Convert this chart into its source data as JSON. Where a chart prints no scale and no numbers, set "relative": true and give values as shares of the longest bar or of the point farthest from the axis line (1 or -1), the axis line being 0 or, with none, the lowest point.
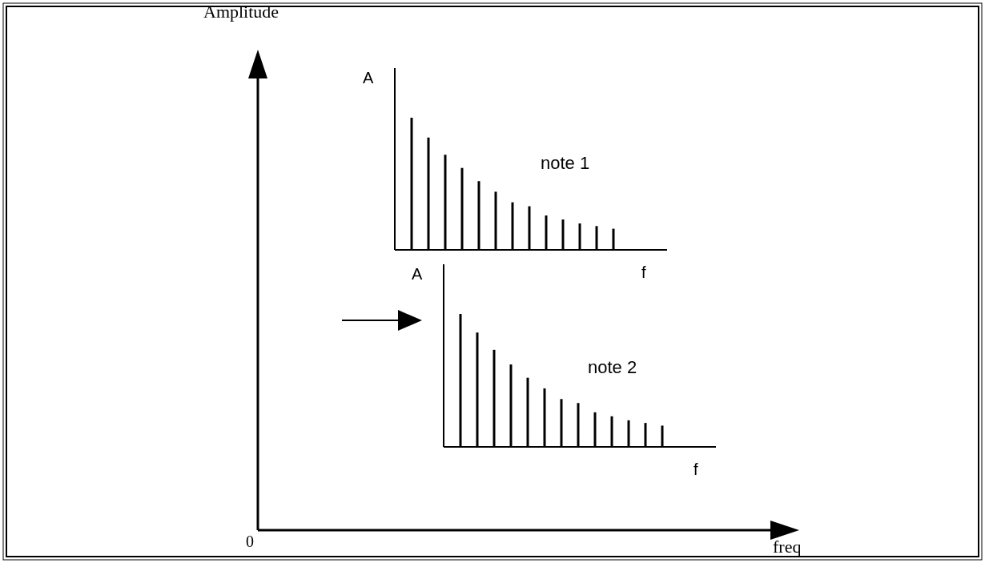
{
  "chart_data": [
    {
      "type": "other",
      "ylabel": "Amplitude",
      "xlabel": "freq",
      "annotations": [
        "0"
      ]
    },
    {
      "type": "bar",
      "relative": true,
      "ylabel": "A",
      "xlabel": "f",
      "annotations": [
        "note 1"
      ],
      "color": "#000000",
      "categories": [
        null,
        null,
        null,
        null,
        null,
        null,
        null,
        null,
        null,
        null,
        null,
        null,
        null
      ],
      "values": [
        1,
        0.85,
        0.72,
        0.62,
        0.52,
        0.44,
        0.36,
        0.33,
        0.26,
        0.23,
        0.2,
        0.18,
        0.16
      ]
    },
    {
      "type": "bar",
      "relative": true,
      "ylabel": "A",
      "xlabel": "f",
      "annotations": [
        "note 2"
      ],
      "color": "#000000",
      "categories": [
        null,
        null,
        null,
        null,
        null,
        null,
        null,
        null,
        null,
        null,
        null,
        null,
        null
      ],
      "values": [
        1,
        0.86,
        0.73,
        0.62,
        0.52,
        0.44,
        0.36,
        0.33,
        0.26,
        0.23,
        0.2,
        0.18,
        0.16
      ]
    }
  ]
}
